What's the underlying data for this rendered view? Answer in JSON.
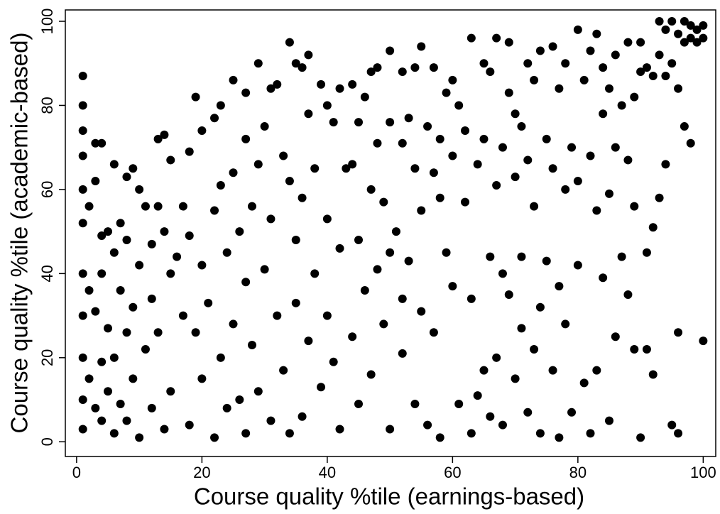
{
  "chart_data": {
    "type": "scatter",
    "x_label": "Course quality %tile (earnings-based)",
    "y_label": "Course quality %tile (academic-based)",
    "color": "#000000",
    "xlim": [
      -1.8,
      102
    ],
    "ylim": [
      -3.5,
      102.7
    ],
    "xticks": [
      0,
      20,
      40,
      60,
      80,
      100
    ],
    "yticks": [
      0,
      20,
      40,
      60,
      80,
      100
    ],
    "x": [
      1,
      1,
      1,
      1,
      1,
      1,
      1,
      1,
      1,
      1,
      1,
      2,
      2,
      2,
      3,
      3,
      3,
      3,
      4,
      4,
      4,
      4,
      4,
      5,
      5,
      5,
      6,
      6,
      6,
      6,
      7,
      7,
      7,
      8,
      8,
      8,
      8,
      9,
      9,
      9,
      10,
      10,
      10,
      11,
      11,
      12,
      12,
      12,
      13,
      13,
      13,
      14,
      14,
      14,
      15,
      15,
      15,
      16,
      17,
      17,
      18,
      18,
      18,
      19,
      19,
      20,
      20,
      20,
      21,
      22,
      22,
      22,
      23,
      23,
      23,
      24,
      24,
      25,
      25,
      25,
      26,
      26,
      27,
      27,
      27,
      27,
      28,
      28,
      29,
      29,
      29,
      30,
      30,
      31,
      31,
      31,
      32,
      32,
      33,
      33,
      34,
      34,
      34,
      35,
      35,
      35,
      36,
      36,
      36,
      37,
      37,
      37,
      38,
      38,
      39,
      39,
      40,
      40,
      40,
      41,
      41,
      42,
      42,
      42,
      43,
      44,
      44,
      44,
      45,
      45,
      45,
      46,
      46,
      47,
      47,
      47,
      48,
      48,
      48,
      49,
      49,
      50,
      50,
      50,
      50,
      51,
      52,
      52,
      52,
      52,
      53,
      53,
      54,
      54,
      54,
      55,
      55,
      55,
      56,
      56,
      57,
      57,
      57,
      58,
      58,
      58,
      59,
      59,
      60,
      60,
      60,
      61,
      61,
      62,
      62,
      63,
      63,
      63,
      64,
      64,
      65,
      65,
      65,
      66,
      66,
      66,
      67,
      67,
      67,
      68,
      68,
      68,
      69,
      69,
      69,
      70,
      70,
      70,
      71,
      71,
      71,
      72,
      72,
      72,
      73,
      73,
      73,
      74,
      74,
      74,
      75,
      75,
      76,
      76,
      76,
      77,
      77,
      77,
      78,
      78,
      78,
      79,
      79,
      80,
      80,
      80,
      81,
      81,
      82,
      82,
      82,
      83,
      83,
      83,
      84,
      84,
      84,
      85,
      85,
      85,
      86,
      86,
      86,
      87,
      87,
      88,
      88,
      88,
      89,
      89,
      89,
      90,
      90,
      90,
      91,
      91,
      91,
      92,
      92,
      92,
      93,
      93,
      93,
      94,
      94,
      94,
      95,
      95,
      95,
      96,
      96,
      96,
      96,
      97,
      97,
      97,
      98,
      98,
      98,
      99,
      99,
      100,
      100,
      100
    ],
    "values": [
      87,
      80,
      74,
      68,
      60,
      52,
      40,
      30,
      20,
      10,
      3,
      56,
      36,
      15,
      71,
      62,
      31,
      8,
      71,
      49,
      40,
      19,
      5,
      50,
      27,
      12,
      66,
      45,
      20,
      2,
      52,
      36,
      9,
      63,
      48,
      26,
      5,
      65,
      32,
      15,
      60,
      42,
      1,
      56,
      22,
      47,
      34,
      8,
      72,
      56,
      26,
      73,
      50,
      3,
      67,
      40,
      12,
      44,
      56,
      30,
      69,
      49,
      4,
      82,
      26,
      74,
      42,
      15,
      33,
      77,
      55,
      1,
      80,
      61,
      20,
      45,
      8,
      86,
      64,
      28,
      50,
      10,
      83,
      72,
      38,
      2,
      56,
      23,
      90,
      66,
      12,
      75,
      41,
      84,
      53,
      5,
      85,
      30,
      68,
      17,
      95,
      62,
      2,
      90,
      48,
      33,
      89,
      58,
      6,
      92,
      78,
      24,
      65,
      40,
      85,
      13,
      80,
      53,
      30,
      76,
      19,
      84,
      46,
      3,
      65,
      85,
      66,
      25,
      76,
      48,
      9,
      82,
      36,
      88,
      60,
      16,
      89,
      71,
      41,
      57,
      28,
      93,
      76,
      45,
      3,
      50,
      88,
      71,
      34,
      21,
      77,
      43,
      89,
      65,
      9,
      94,
      55,
      31,
      75,
      4,
      89,
      64,
      26,
      72,
      58,
      1,
      83,
      45,
      86,
      68,
      37,
      80,
      9,
      74,
      57,
      96,
      34,
      2,
      66,
      11,
      90,
      72,
      17,
      88,
      44,
      6,
      96,
      61,
      20,
      70,
      40,
      4,
      95,
      83,
      35,
      78,
      63,
      15,
      75,
      44,
      27,
      90,
      67,
      7,
      86,
      56,
      22,
      93,
      32,
      2,
      72,
      43,
      94,
      65,
      17,
      84,
      37,
      1,
      90,
      60,
      28,
      70,
      7,
      98,
      62,
      42,
      86,
      14,
      93,
      68,
      2,
      97,
      55,
      17,
      89,
      78,
      39,
      84,
      59,
      5,
      92,
      70,
      25,
      80,
      44,
      95,
      67,
      35,
      82,
      56,
      22,
      95,
      88,
      1,
      89,
      45,
      22,
      87,
      51,
      16,
      100,
      92,
      58,
      98,
      87,
      66,
      100,
      90,
      4,
      97,
      84,
      26,
      2,
      100,
      95,
      75,
      99,
      96,
      71,
      98,
      95,
      99,
      96,
      24
    ]
  }
}
